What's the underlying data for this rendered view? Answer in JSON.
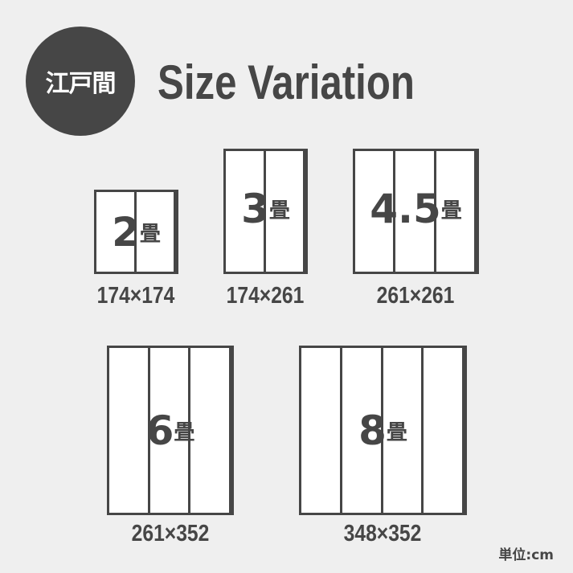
{
  "badge": "江戸間",
  "title": "Size Variation",
  "unit_label": "単位:cm",
  "colors": {
    "background": "#efefef",
    "ink": "#464646",
    "mat": "#ffffff"
  },
  "mats": [
    {
      "size": "2",
      "suffix": "畳",
      "dimensions": "174×174",
      "panels": 2
    },
    {
      "size": "3",
      "suffix": "畳",
      "dimensions": "174×261",
      "panels": 2
    },
    {
      "size": "4.5",
      "suffix": "畳",
      "dimensions": "261×261",
      "panels": 3
    },
    {
      "size": "6",
      "suffix": "畳",
      "dimensions": "261×352",
      "panels": 3
    },
    {
      "size": "8",
      "suffix": "畳",
      "dimensions": "348×352",
      "panels": 4
    }
  ]
}
